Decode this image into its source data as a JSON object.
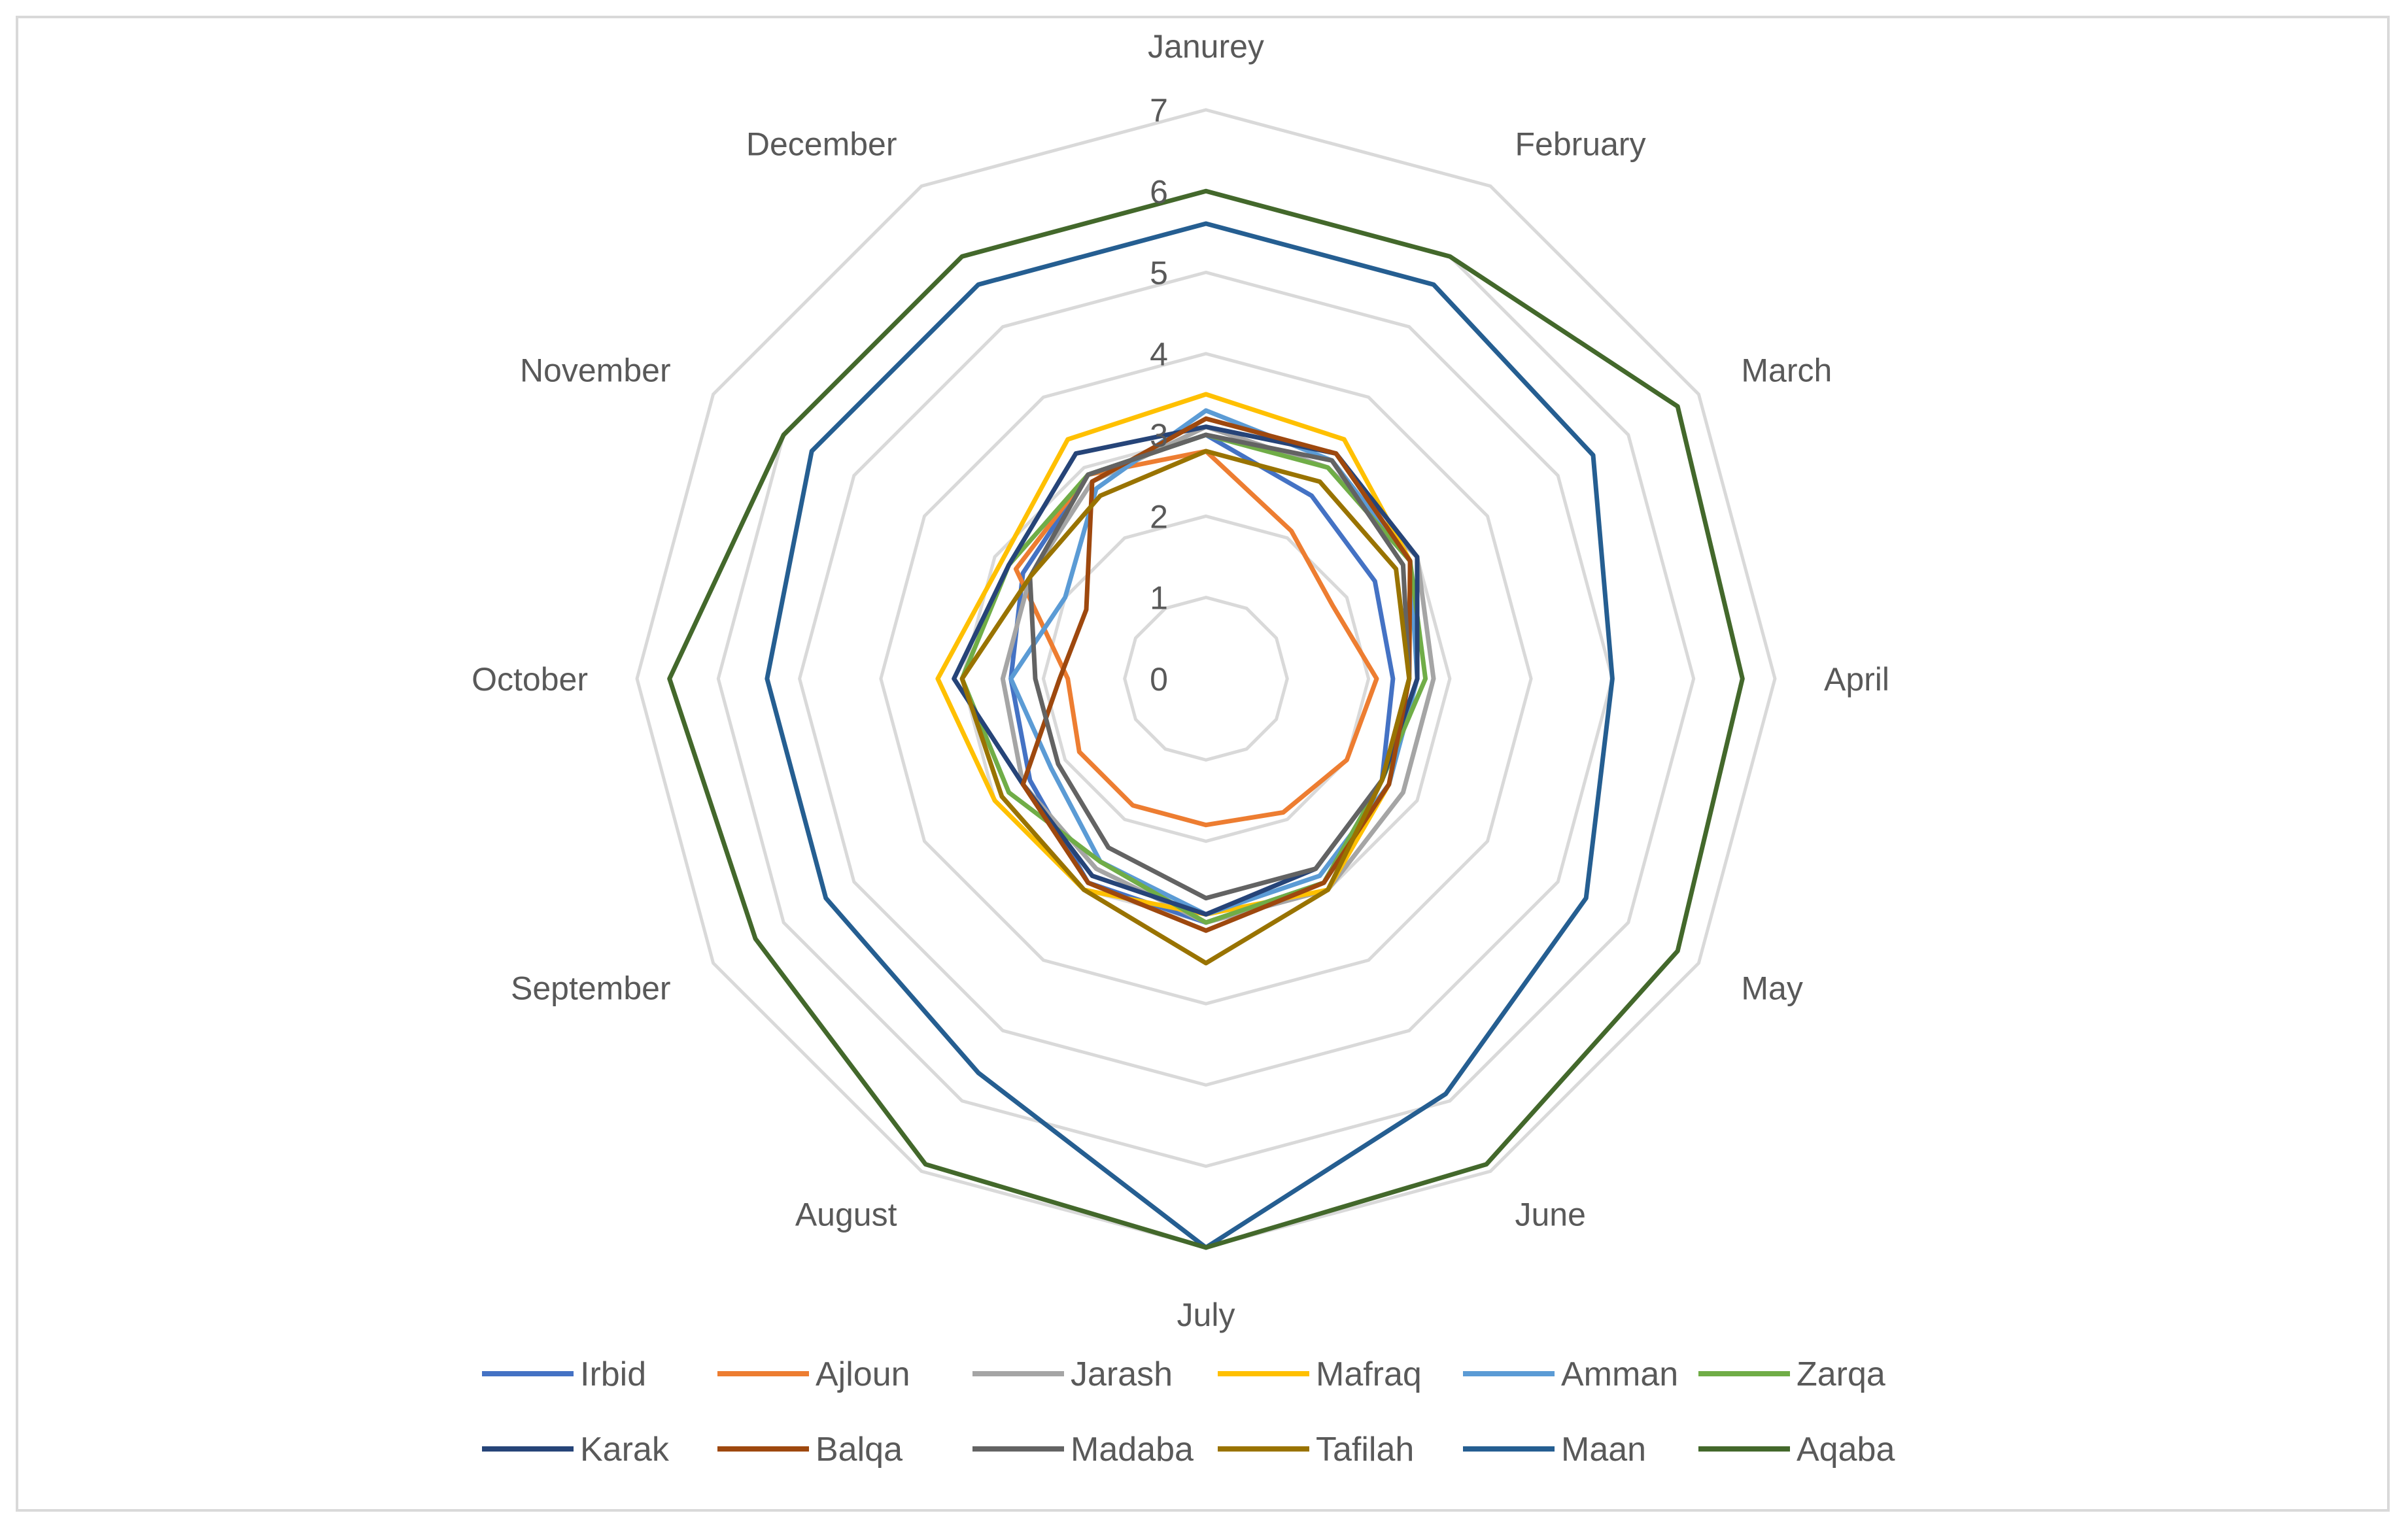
{
  "chart_data": {
    "type": "radar",
    "title": "",
    "categories": [
      "Janurey",
      "February",
      "March",
      "April",
      "May",
      "June",
      "July",
      "August",
      "September",
      "October",
      "November",
      "December"
    ],
    "rlim": [
      0,
      7
    ],
    "ticks": [
      0,
      1,
      2,
      3,
      4,
      5,
      6,
      7
    ],
    "tick_labels": [
      "0",
      "1",
      "2",
      "3",
      "4",
      "5",
      "6",
      "7"
    ],
    "grid": true,
    "legend": "bottom",
    "series": [
      {
        "name": "Irbid",
        "color": "#4472c4",
        "values": [
          3.0,
          2.6,
          2.4,
          2.3,
          2.5,
          2.9,
          3.0,
          2.9,
          2.5,
          2.4,
          2.6,
          2.9
        ]
      },
      {
        "name": "Ajloun",
        "color": "#ed7d31",
        "values": [
          2.8,
          2.1,
          1.8,
          2.1,
          2.0,
          1.9,
          1.8,
          1.8,
          1.8,
          1.7,
          2.7,
          2.9
        ]
      },
      {
        "name": "Jarash",
        "color": "#a5a5a5",
        "values": [
          3.1,
          3.0,
          3.0,
          2.8,
          2.8,
          3.0,
          3.0,
          2.7,
          2.6,
          2.5,
          2.5,
          2.8
        ]
      },
      {
        "name": "Mafraq",
        "color": "#ffc000",
        "values": [
          3.5,
          3.4,
          2.9,
          2.5,
          2.6,
          3.0,
          2.9,
          3.0,
          3.0,
          3.3,
          2.9,
          3.4
        ]
      },
      {
        "name": "Amman",
        "color": "#5b9bd5",
        "values": [
          3.3,
          3.1,
          2.9,
          2.6,
          2.6,
          2.8,
          2.9,
          2.6,
          2.2,
          2.4,
          2.0,
          2.7
        ]
      },
      {
        "name": "Zarqa",
        "color": "#70ad47",
        "values": [
          3.0,
          3.0,
          2.9,
          2.7,
          2.5,
          2.9,
          3.0,
          2.6,
          2.8,
          3.0,
          2.8,
          2.9
        ]
      },
      {
        "name": "Karak",
        "color": "#264478",
        "values": [
          3.1,
          3.2,
          3.0,
          2.6,
          2.5,
          2.7,
          2.9,
          2.8,
          2.6,
          3.1,
          2.8,
          3.2
        ]
      },
      {
        "name": "Balqa",
        "color": "#9e480e",
        "values": [
          3.2,
          3.2,
          2.9,
          2.5,
          2.6,
          2.9,
          3.1,
          2.9,
          2.6,
          1.8,
          1.7,
          2.8
        ]
      },
      {
        "name": "Madaba",
        "color": "#636363",
        "values": [
          3.0,
          3.1,
          2.8,
          2.5,
          2.5,
          2.7,
          2.7,
          2.4,
          2.1,
          2.1,
          2.5,
          2.9
        ]
      },
      {
        "name": "Tafilah",
        "color": "#997300",
        "values": [
          2.8,
          2.8,
          2.7,
          2.5,
          2.5,
          3.0,
          3.5,
          3.0,
          2.9,
          3.0,
          2.5,
          2.6
        ]
      },
      {
        "name": "Maan",
        "color": "#255e91",
        "values": [
          5.6,
          5.6,
          5.5,
          5.0,
          5.4,
          5.9,
          7.0,
          5.6,
          5.4,
          5.4,
          5.6,
          5.6
        ]
      },
      {
        "name": "Aqaba",
        "color": "#43682b",
        "values": [
          6.0,
          6.0,
          6.7,
          6.6,
          6.7,
          6.9,
          7.0,
          6.9,
          6.4,
          6.6,
          6.0,
          6.0
        ]
      }
    ]
  }
}
